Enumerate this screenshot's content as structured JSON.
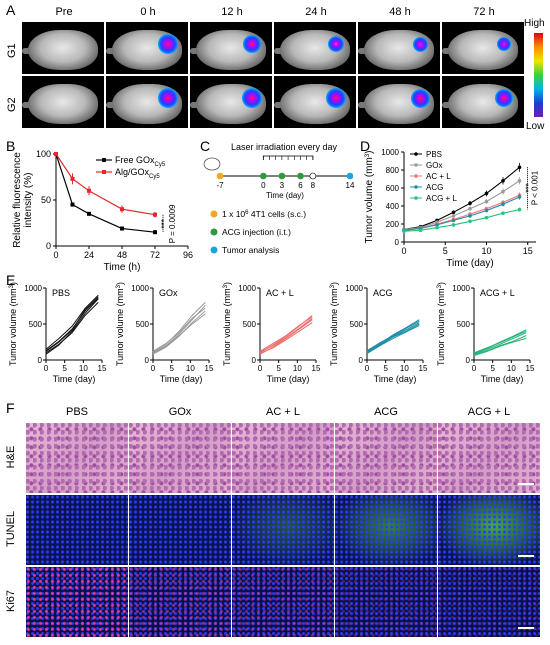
{
  "panels": {
    "a": "A",
    "b": "B",
    "c": "C",
    "d": "D",
    "e": "E",
    "f": "F"
  },
  "imaging": {
    "timepoints": [
      "Pre",
      "0 h",
      "12 h",
      "24 h",
      "48 h",
      "72 h"
    ],
    "rows": [
      "G1",
      "G2"
    ],
    "colorbar_high": "High",
    "colorbar_low": "Low",
    "signal_levels": {
      "G1": [
        0,
        1.0,
        0.75,
        0.6,
        0.45,
        0.4
      ],
      "G2": [
        0,
        1.0,
        1.0,
        1.0,
        0.85,
        0.8
      ]
    }
  },
  "chart_b": {
    "type": "line",
    "xlabel": "Time (h)",
    "ylabel": [
      "Relative fluorescence",
      "intensity (%)"
    ],
    "xticks": [
      0,
      24,
      48,
      72,
      96
    ],
    "yticks": [
      0,
      50,
      100
    ],
    "xlim": [
      0,
      96
    ],
    "ylim": [
      0,
      100
    ],
    "series": [
      {
        "name_main": "Free GOx",
        "name_sub": "Cy5",
        "color": "#000000",
        "x": [
          0,
          12,
          24,
          48,
          72
        ],
        "y": [
          100,
          45,
          35,
          19,
          15
        ],
        "err": [
          0,
          2,
          2,
          1,
          1
        ]
      },
      {
        "name_main": "Alg/GOx",
        "name_sub": "Cy5",
        "color": "#e8262b",
        "x": [
          0,
          12,
          24,
          48,
          72
        ],
        "y": [
          100,
          73,
          60,
          40,
          34
        ],
        "err": [
          0,
          6,
          5,
          4,
          3
        ]
      }
    ],
    "pvalue": "P = 0.0009",
    "stars": "***"
  },
  "scheme_c": {
    "title": "Laser irradiation every day",
    "axis_label": "Time (day)",
    "days": [
      "-7",
      "0",
      "3",
      "6",
      "8",
      "14"
    ],
    "day_values": [
      -7,
      0,
      3,
      6,
      8,
      14
    ],
    "day_colors": [
      "#f4a71c",
      "#2e9a3b",
      "#2e9a3b",
      "#2e9a3b",
      "#ffffff",
      "#1fa2d9"
    ],
    "legend": [
      {
        "color": "#f4a71c",
        "pre": "1 x 10",
        "sup": "6",
        "post": " 4T1 cells (s.c.)"
      },
      {
        "color": "#2e9a3b",
        "pre": "ACG injection (i.t.)",
        "sup": "",
        "post": ""
      },
      {
        "color": "#1fa2d9",
        "pre": "Tumor analysis",
        "sup": "",
        "post": ""
      }
    ]
  },
  "chart_data": [
    {
      "type": "line",
      "xlabel": "Time (day)",
      "ylabel": "Tumor volume (mm",
      "ylabel_sup": "3",
      "ylabel_end": ")",
      "xticks": [
        0,
        5,
        10,
        15
      ],
      "yticks": [
        0,
        200,
        400,
        600,
        800,
        1000
      ],
      "xlim": [
        0,
        16
      ],
      "ylim": [
        0,
        1000
      ],
      "x": [
        0,
        2,
        4,
        6,
        8,
        10,
        12,
        14
      ],
      "series": [
        {
          "name": "PBS",
          "color": "#000000",
          "values": [
            140,
            170,
            240,
            330,
            430,
            540,
            680,
            830
          ]
        },
        {
          "name": "GOx",
          "color": "#9b9b9b",
          "values": [
            140,
            160,
            220,
            290,
            370,
            450,
            560,
            680
          ]
        },
        {
          "name": "AC + L",
          "color": "#ef7a7a",
          "values": [
            130,
            150,
            200,
            250,
            310,
            370,
            440,
            520
          ]
        },
        {
          "name": "ACG",
          "color": "#1d8fa8",
          "values": [
            130,
            150,
            190,
            240,
            290,
            350,
            420,
            500
          ]
        },
        {
          "name": "ACG + L",
          "color": "#29c27a",
          "values": [
            120,
            130,
            160,
            190,
            230,
            270,
            320,
            360
          ]
        }
      ],
      "pvalue": "P < 0.001",
      "stars": "***"
    }
  ],
  "individual": {
    "xlabel": "Time (day)",
    "ylabel": "Tumor volume (mm",
    "ylabel_sup": "3",
    "ylabel_end": ")",
    "xticks": [
      0,
      5,
      10,
      15
    ],
    "yticks": [
      0,
      500,
      1000
    ],
    "panels": [
      {
        "name": "PBS",
        "color": "#111111",
        "curves": [
          [
            120,
            250,
            420,
            700,
            880
          ],
          [
            100,
            220,
            380,
            620,
            800
          ],
          [
            150,
            300,
            470,
            720,
            900
          ],
          [
            80,
            210,
            400,
            650,
            850
          ],
          [
            130,
            260,
            430,
            680,
            860
          ]
        ]
      },
      {
        "name": "GOx",
        "color": "#9b9b9b",
        "curves": [
          [
            100,
            200,
            360,
            560,
            760
          ],
          [
            120,
            230,
            380,
            580,
            720
          ],
          [
            80,
            180,
            330,
            520,
            680
          ],
          [
            110,
            220,
            400,
            620,
            800
          ],
          [
            90,
            190,
            340,
            500,
            640
          ]
        ]
      },
      {
        "name": "AC + L",
        "color": "#ef6b6b",
        "curves": [
          [
            100,
            210,
            330,
            470,
            620
          ],
          [
            80,
            180,
            300,
            430,
            560
          ],
          [
            120,
            230,
            340,
            480,
            600
          ],
          [
            90,
            170,
            280,
            400,
            520
          ],
          [
            110,
            200,
            310,
            440,
            580
          ]
        ]
      },
      {
        "name": "ACG",
        "color": "#1d8fa8",
        "curves": [
          [
            100,
            220,
            330,
            420,
            520
          ],
          [
            130,
            240,
            340,
            440,
            540
          ],
          [
            90,
            200,
            300,
            390,
            480
          ],
          [
            110,
            230,
            350,
            450,
            560
          ],
          [
            120,
            210,
            320,
            400,
            500
          ]
        ]
      },
      {
        "name": "ACG + L",
        "color": "#25b57a",
        "curves": [
          [
            80,
            150,
            220,
            300,
            380
          ],
          [
            100,
            170,
            240,
            320,
            400
          ],
          [
            70,
            130,
            200,
            260,
            340
          ],
          [
            90,
            160,
            250,
            330,
            420
          ],
          [
            60,
            120,
            190,
            250,
            300
          ]
        ]
      }
    ]
  },
  "histology": {
    "columns": [
      "PBS",
      "GOx",
      "AC + L",
      "ACG",
      "ACG + L"
    ],
    "rows": [
      "H&E",
      "TUNEL",
      "Ki67"
    ],
    "tunel_green": [
      0.0,
      0.0,
      0.35,
      0.6,
      0.85
    ],
    "ki67_red": [
      0.9,
      0.6,
      0.5,
      0.3,
      0.2
    ]
  }
}
